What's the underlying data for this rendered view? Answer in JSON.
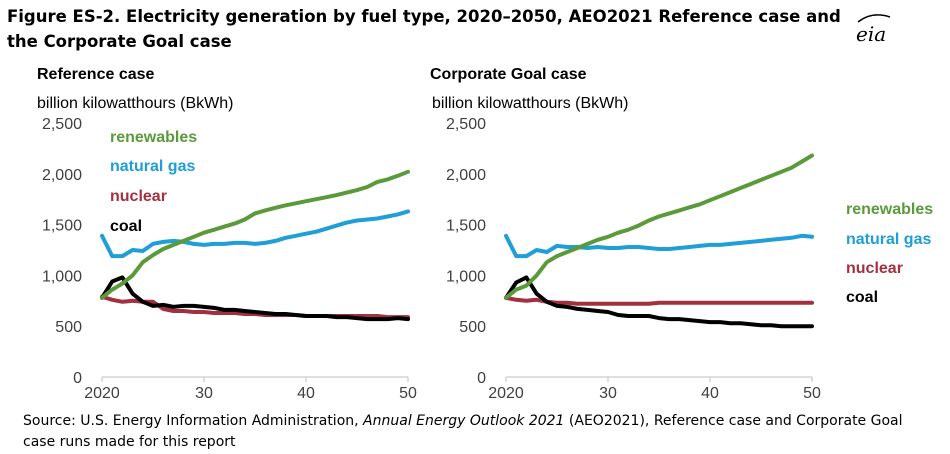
{
  "figure": {
    "title": "Figure ES-2. Electricity generation by fuel type, 2020–2050, AEO2021 Reference case and the Corporate Goal case",
    "logo_text": "eia",
    "source_prefix": "Source: U.S. Energy Information Administration, ",
    "source_italic": "Annual Energy Outlook 2021",
    "source_suffix": " (AEO2021), Reference case and Corporate Goal case runs made for this report"
  },
  "colors": {
    "renewables": "#5b9a3a",
    "natural gas": "#1f9ed8",
    "nuclear": "#a3303e",
    "coal": "#000000",
    "axis": "#bfbfbf",
    "tick_text": "#404040"
  },
  "chart_data": [
    {
      "type": "line",
      "title": "Reference case",
      "ylabel": "billion kilowatthours (BkWh)",
      "xlabel": "",
      "x": [
        2020,
        2021,
        2022,
        2023,
        2024,
        2025,
        2026,
        2027,
        2028,
        2029,
        2030,
        2031,
        2032,
        2033,
        2034,
        2035,
        2036,
        2037,
        2038,
        2039,
        2040,
        2041,
        2042,
        2043,
        2044,
        2045,
        2046,
        2047,
        2048,
        2049,
        2050
      ],
      "xticks": [
        2020,
        2030,
        2040,
        2050
      ],
      "xtick_labels": [
        "2020",
        "30",
        "40",
        "50"
      ],
      "xlim": [
        2020,
        2050
      ],
      "ylim": [
        0,
        2500
      ],
      "yticks": [
        0,
        500,
        1000,
        1500,
        2000,
        2500
      ],
      "ytick_labels": [
        "0",
        "500",
        "1,000",
        "1,500",
        "2,000",
        "2,500"
      ],
      "grid": false,
      "legend": "inline-labels-top-left",
      "series": [
        {
          "name": "renewables",
          "values": [
            780,
            860,
            920,
            1000,
            1130,
            1200,
            1260,
            1300,
            1340,
            1380,
            1420,
            1450,
            1480,
            1510,
            1550,
            1610,
            1640,
            1665,
            1690,
            1710,
            1730,
            1750,
            1770,
            1790,
            1815,
            1840,
            1870,
            1920,
            1945,
            1980,
            2020
          ]
        },
        {
          "name": "natural gas",
          "values": [
            1390,
            1190,
            1190,
            1250,
            1240,
            1310,
            1330,
            1340,
            1330,
            1310,
            1300,
            1310,
            1310,
            1320,
            1320,
            1310,
            1320,
            1340,
            1370,
            1390,
            1410,
            1430,
            1460,
            1490,
            1520,
            1540,
            1550,
            1560,
            1580,
            1600,
            1630
          ]
        },
        {
          "name": "nuclear",
          "values": [
            790,
            760,
            740,
            750,
            740,
            740,
            670,
            650,
            650,
            640,
            640,
            630,
            630,
            630,
            620,
            620,
            610,
            610,
            610,
            610,
            600,
            600,
            600,
            600,
            600,
            600,
            600,
            600,
            590,
            590,
            590
          ]
        },
        {
          "name": "coal",
          "values": [
            780,
            940,
            980,
            820,
            740,
            700,
            710,
            690,
            700,
            700,
            690,
            680,
            660,
            660,
            650,
            640,
            630,
            620,
            620,
            610,
            600,
            600,
            600,
            590,
            590,
            580,
            570,
            570,
            570,
            580,
            570
          ]
        }
      ]
    },
    {
      "type": "line",
      "title": "Corporate Goal case",
      "ylabel": "billion kilowatthours (BkWh)",
      "xlabel": "",
      "x": [
        2020,
        2021,
        2022,
        2023,
        2024,
        2025,
        2026,
        2027,
        2028,
        2029,
        2030,
        2031,
        2032,
        2033,
        2034,
        2035,
        2036,
        2037,
        2038,
        2039,
        2040,
        2041,
        2042,
        2043,
        2044,
        2045,
        2046,
        2047,
        2048,
        2049,
        2050
      ],
      "xticks": [
        2020,
        2030,
        2040,
        2050
      ],
      "xtick_labels": [
        "2020",
        "30",
        "40",
        "50"
      ],
      "xlim": [
        2020,
        2050
      ],
      "ylim": [
        0,
        2500
      ],
      "yticks": [
        0,
        500,
        1000,
        1500,
        2000,
        2500
      ],
      "ytick_labels": [
        "0",
        "500",
        "1,000",
        "1,500",
        "2,000",
        "2,500"
      ],
      "grid": false,
      "legend": "right",
      "series": [
        {
          "name": "renewables",
          "values": [
            780,
            860,
            900,
            1000,
            1130,
            1190,
            1230,
            1270,
            1310,
            1350,
            1380,
            1420,
            1450,
            1490,
            1540,
            1580,
            1610,
            1640,
            1670,
            1700,
            1740,
            1780,
            1820,
            1860,
            1900,
            1940,
            1980,
            2020,
            2060,
            2120,
            2180
          ]
        },
        {
          "name": "natural gas",
          "values": [
            1390,
            1190,
            1190,
            1250,
            1230,
            1290,
            1280,
            1280,
            1270,
            1280,
            1270,
            1270,
            1280,
            1280,
            1270,
            1260,
            1260,
            1270,
            1280,
            1290,
            1300,
            1300,
            1310,
            1320,
            1330,
            1340,
            1350,
            1360,
            1370,
            1390,
            1380
          ]
        },
        {
          "name": "nuclear",
          "values": [
            780,
            760,
            750,
            760,
            740,
            730,
            730,
            720,
            720,
            720,
            720,
            720,
            720,
            720,
            720,
            730,
            730,
            730,
            730,
            730,
            730,
            730,
            730,
            730,
            730,
            730,
            730,
            730,
            730,
            730,
            730
          ]
        },
        {
          "name": "coal",
          "values": [
            780,
            930,
            980,
            820,
            740,
            700,
            690,
            670,
            660,
            650,
            640,
            610,
            600,
            600,
            600,
            580,
            570,
            570,
            560,
            550,
            540,
            540,
            530,
            530,
            520,
            510,
            510,
            500,
            500,
            500,
            500
          ]
        }
      ]
    }
  ]
}
